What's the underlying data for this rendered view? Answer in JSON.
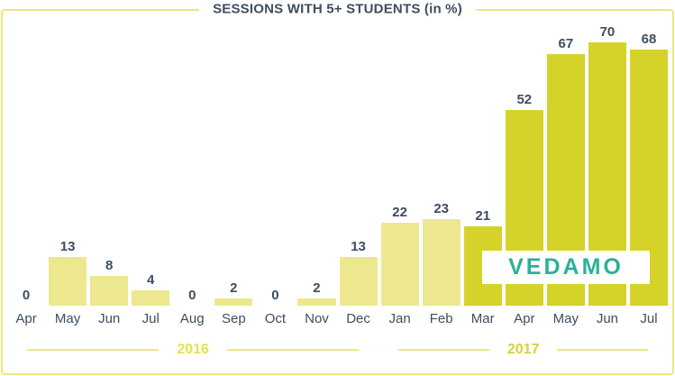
{
  "logo": {
    "text": "VEDAMO"
  },
  "colors": {
    "bar_light": "#EDE88F",
    "bar_dark": "#D5D22A",
    "text": "#3D4D61",
    "divider_line": "#EDE87F",
    "frame_border": "#EDE87D",
    "logo_teal": "#2BB198",
    "year_2016": "#E6E14F",
    "year_2017": "#D8D232",
    "background": "#FFFFFF"
  },
  "chart_data": {
    "type": "bar",
    "title": "SESSIONS WITH 5+ STUDENTS (in %)",
    "categories": [
      "Apr",
      "May",
      "Jun",
      "Jul",
      "Aug",
      "Sep",
      "Oct",
      "Nov",
      "Dec",
      "Jan",
      "Feb",
      "Mar",
      "Apr",
      "May",
      "Jun",
      "Jul"
    ],
    "values": [
      0,
      13,
      8,
      4,
      0,
      2,
      0,
      2,
      13,
      22,
      23,
      21,
      52,
      67,
      70,
      68
    ],
    "bar_styles": [
      "light",
      "light",
      "light",
      "light",
      "light",
      "light",
      "light",
      "light",
      "light",
      "light",
      "light",
      "dark",
      "dark",
      "dark",
      "dark",
      "dark"
    ],
    "year_groups": [
      {
        "label": "2016",
        "span": 9,
        "color": "#E6E14F"
      },
      {
        "label": "2017",
        "span": 7,
        "color": "#D8D232"
      }
    ],
    "xlabel": "",
    "ylabel": "",
    "ylim": [
      0,
      70
    ],
    "gridlines": false,
    "value_labels": true,
    "legend": "none"
  }
}
